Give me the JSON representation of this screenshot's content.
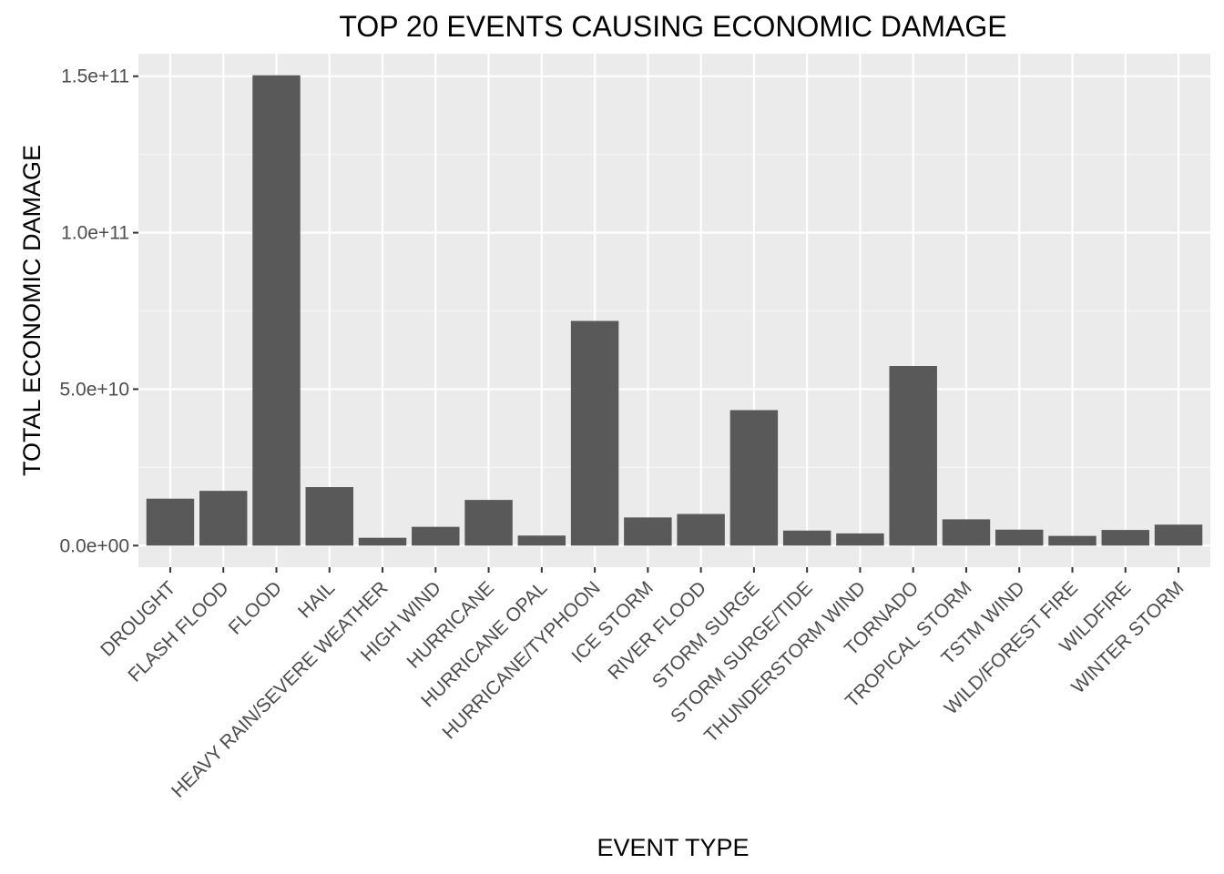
{
  "chart_data": {
    "type": "bar",
    "title": "TOP 20 EVENTS CAUSING ECONOMIC DAMAGE",
    "xlabel": "EVENT TYPE",
    "ylabel": "TOTAL ECONOMIC DAMAGE",
    "categories": [
      "DROUGHT",
      "FLASH FLOOD",
      "FLOOD",
      "HAIL",
      "HEAVY RAIN/SEVERE WEATHER",
      "HIGH WIND",
      "HURRICANE",
      "HURRICANE OPAL",
      "HURRICANE/TYPHOON",
      "ICE STORM",
      "RIVER FLOOD",
      "STORM SURGE",
      "STORM SURGE/TIDE",
      "THUNDERSTORM WIND",
      "TORNADO",
      "TROPICAL STORM",
      "TSTM WIND",
      "WILD/FOREST FIRE",
      "WILDFIRE",
      "WINTER STORM"
    ],
    "values": [
      15000000000,
      17500000000,
      150300000000,
      18700000000,
      2500000000,
      6000000000,
      14600000000,
      3200000000,
      71800000000,
      9000000000,
      10100000000,
      43300000000,
      4800000000,
      3900000000,
      57400000000,
      8400000000,
      5100000000,
      3100000000,
      5000000000,
      6700000000
    ],
    "ylim": [
      -6900000000,
      157200000000
    ],
    "yticks": [
      0,
      50000000000,
      100000000000,
      150000000000
    ],
    "ytick_labels": [
      "0.0e+00",
      "5.0e+10",
      "1.0e+11",
      "1.5e+11"
    ],
    "grid": true,
    "colors": {
      "bar": "#595959",
      "panel": "#ebebeb",
      "grid_major": "#ffffff",
      "grid_minor": "#f5f5f5",
      "tick_text": "#4d4d4d",
      "tick_mark": "#333333"
    }
  }
}
